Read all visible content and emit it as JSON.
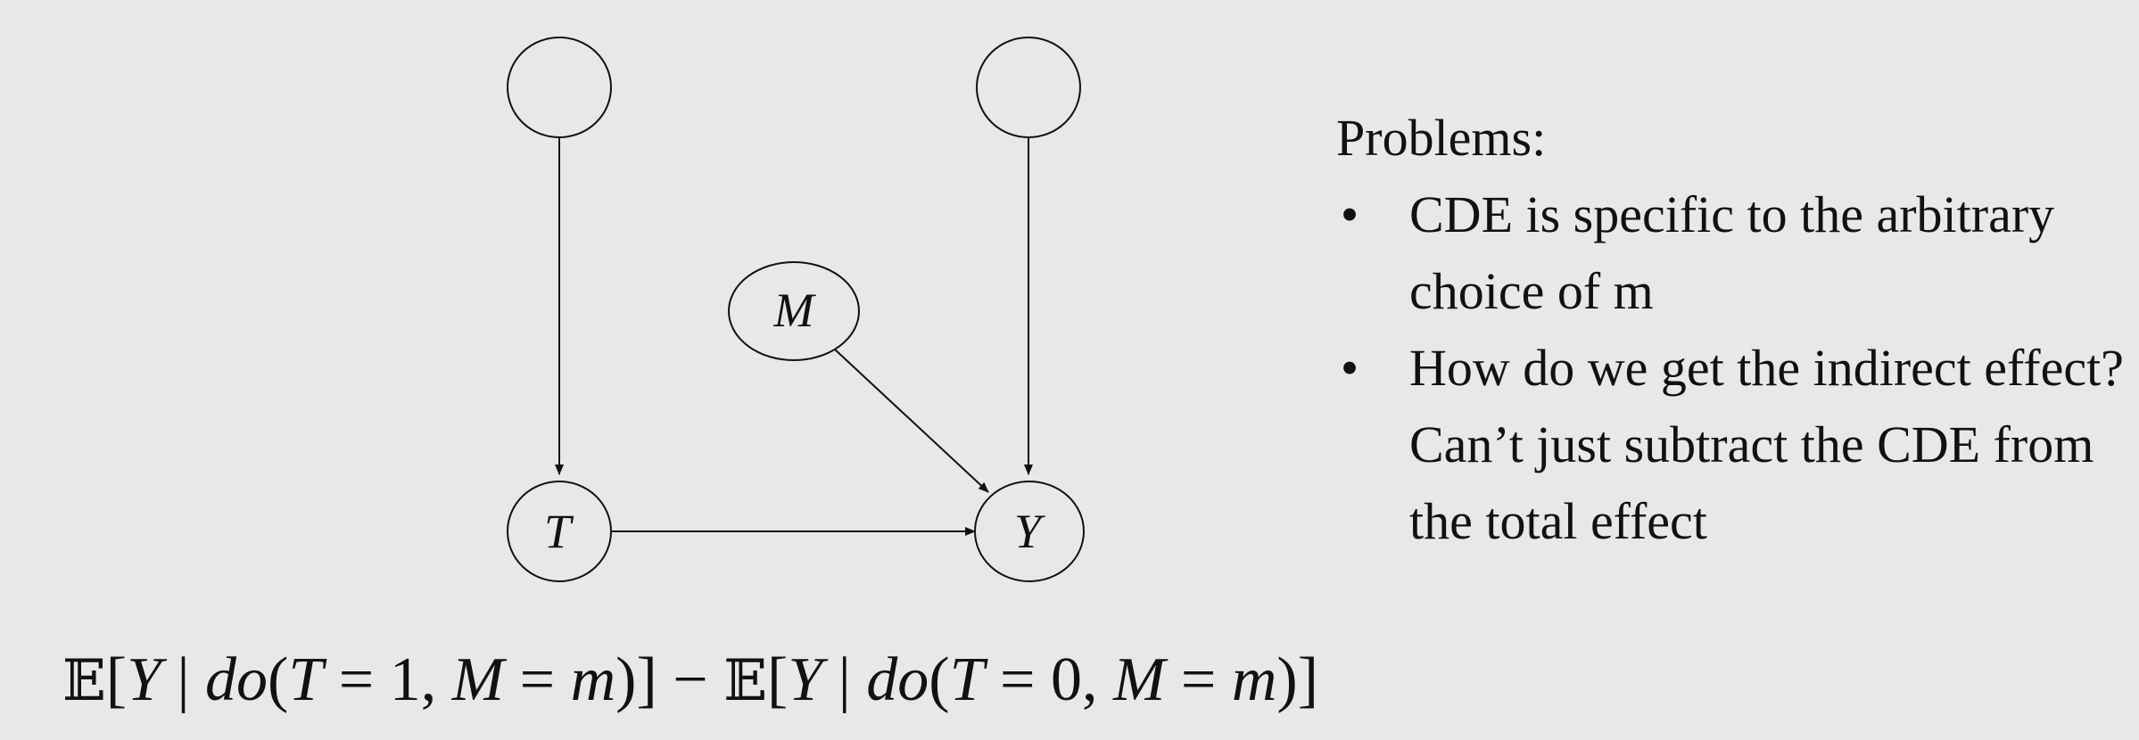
{
  "diagram": {
    "nodes": {
      "top_left": "",
      "top_right": "",
      "mediator": "M",
      "treatment": "T",
      "outcome": "Y"
    },
    "edges": [
      {
        "from": "top_left",
        "to": "treatment"
      },
      {
        "from": "top_right",
        "to": "outcome"
      },
      {
        "from": "mediator",
        "to": "outcome"
      },
      {
        "from": "treatment",
        "to": "outcome"
      }
    ]
  },
  "problems": {
    "title": "Problems:",
    "bullet": "•",
    "items": [
      "CDE is specific to the arbitrary choice of m",
      "How do we get the indirect effect? Can’t just subtract the CDE from the total effect"
    ]
  },
  "formula": {
    "e1": "𝔼",
    "lhs_open": "[",
    "lhs_y": "Y",
    "lhs_bar": " | ",
    "lhs_do": "do",
    "lhs_paren": "(",
    "lhs_t": "T",
    "lhs_eq1": " = 1, ",
    "lhs_m": "M",
    "lhs_eq2": " = ",
    "lhs_mval": "m",
    "lhs_close": ")]",
    "minus": " − ",
    "e2": "𝔼",
    "rhs_open": "[",
    "rhs_y": "Y",
    "rhs_bar": " | ",
    "rhs_do": "do",
    "rhs_paren": "(",
    "rhs_t": "T",
    "rhs_eq1": " = 0, ",
    "rhs_m": "M",
    "rhs_eq2": " = ",
    "rhs_mval": "m",
    "rhs_close": ")]"
  }
}
